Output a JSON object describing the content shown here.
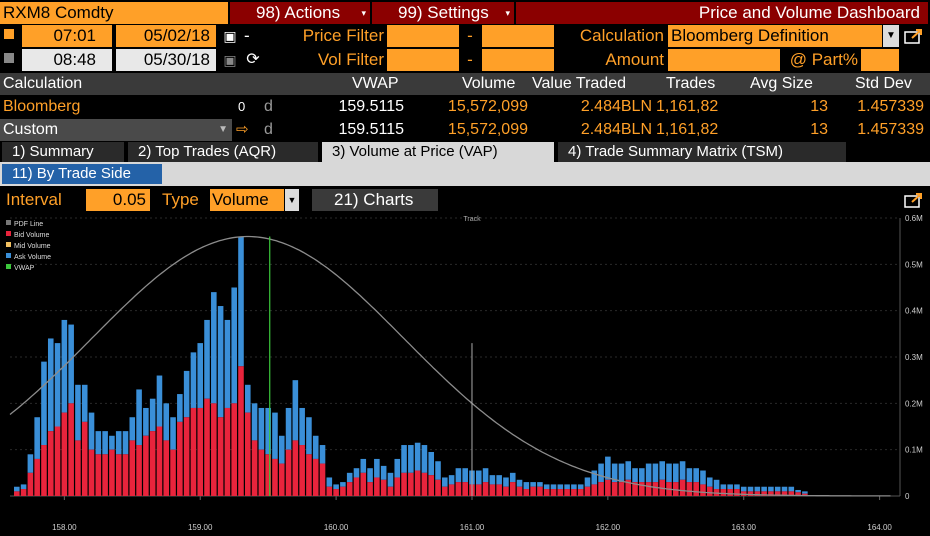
{
  "header": {
    "ticker": "RXM8 Comdty",
    "actions": "98) Actions",
    "settings": "99) Settings",
    "title": "Price and Volume Dashboard"
  },
  "filters": {
    "time_start": "07:01",
    "date_start": "05/02/18",
    "time_end": "08:48",
    "date_end": "05/30/18",
    "price_filter_label": "Price Filter",
    "vol_filter_label": "Vol Filter",
    "dash": "-",
    "calculation_label": "Calculation",
    "calculation_value": "Bloomberg Definition",
    "amount_label": "Amount",
    "part_label": "@ Part%"
  },
  "table": {
    "headers": [
      "Calculation",
      "VWAP",
      "Volume",
      "Value Traded",
      "Trades",
      "Avg Size",
      "Std Dev"
    ],
    "rows": [
      {
        "name": "Bloomberg",
        "flag": "0",
        "d": "d",
        "vwap": "159.5115",
        "volume": "15,572,099",
        "value": "2.484BLN",
        "trades": "1,161,82",
        "avg": "13",
        "std": "1.457339"
      },
      {
        "name": "Custom",
        "flag": "",
        "d": "d",
        "vwap": "159.5115",
        "volume": "15,572,099",
        "value": "2.484BLN",
        "trades": "1,161,82",
        "avg": "13",
        "std": "1.457339"
      }
    ]
  },
  "tabs": [
    "1) Summary",
    "2) Top Trades (AQR)",
    "3) Volume at Price (VAP)",
    "4) Trade Summary Matrix (TSM)"
  ],
  "subtab": "11) By Trade Side",
  "controls": {
    "interval_label": "Interval",
    "interval_value": "0.05",
    "type_label": "Type",
    "type_value": "Volume",
    "charts_button": "21) Charts"
  },
  "colors": {
    "bid": "#e8243c",
    "ask": "#3a8fd8",
    "pdf": "#8c8c8c",
    "vwap": "#3cc83c",
    "accent": "#ffa028",
    "header_red": "#8b0000"
  },
  "chart_data": {
    "type": "bar",
    "legend": [
      "PDF Line",
      "Bid Volume",
      "Mid Volume",
      "Ask Volume",
      "VWAP"
    ],
    "legend_colors": [
      "#777777",
      "#e8243c",
      "#f2c060",
      "#3a8fd8",
      "#3cc83c"
    ],
    "track_label": "Track",
    "x_ticks": [
      "158.00",
      "159.00",
      "160.00",
      "161.00",
      "162.00",
      "163.00",
      "164.00"
    ],
    "y_ticks": [
      "0",
      "0.1M",
      "0.2M",
      "0.3M",
      "0.4M",
      "0.5M",
      "0.6M"
    ],
    "xlim": [
      157.6,
      164.15
    ],
    "ylim": [
      0,
      0.6
    ],
    "vwap": 159.5115,
    "track_x": 161.0,
    "x_start": 157.65,
    "step": 0.05,
    "bid": [
      0.01,
      0.015,
      0.05,
      0.08,
      0.11,
      0.14,
      0.15,
      0.18,
      0.2,
      0.12,
      0.16,
      0.1,
      0.09,
      0.09,
      0.1,
      0.09,
      0.09,
      0.12,
      0.11,
      0.13,
      0.14,
      0.15,
      0.12,
      0.1,
      0.16,
      0.17,
      0.19,
      0.19,
      0.21,
      0.2,
      0.17,
      0.19,
      0.2,
      0.28,
      0.18,
      0.12,
      0.1,
      0.09,
      0.08,
      0.07,
      0.1,
      0.12,
      0.11,
      0.09,
      0.08,
      0.07,
      0.02,
      0.015,
      0.02,
      0.03,
      0.04,
      0.05,
      0.03,
      0.04,
      0.035,
      0.02,
      0.04,
      0.05,
      0.05,
      0.055,
      0.05,
      0.045,
      0.035,
      0.02,
      0.025,
      0.03,
      0.03,
      0.025,
      0.025,
      0.03,
      0.025,
      0.025,
      0.02,
      0.03,
      0.02,
      0.015,
      0.02,
      0.02,
      0.015,
      0.015,
      0.015,
      0.015,
      0.015,
      0.015,
      0.02,
      0.025,
      0.03,
      0.035,
      0.03,
      0.03,
      0.035,
      0.03,
      0.03,
      0.03,
      0.03,
      0.035,
      0.03,
      0.03,
      0.035,
      0.03,
      0.03,
      0.025,
      0.02,
      0.015,
      0.015,
      0.015,
      0.015,
      0.01,
      0.01,
      0.01,
      0.01,
      0.01,
      0.01,
      0.01,
      0.01,
      0.008,
      0.005
    ],
    "ask": [
      0.01,
      0.01,
      0.04,
      0.09,
      0.18,
      0.2,
      0.18,
      0.2,
      0.17,
      0.12,
      0.08,
      0.08,
      0.05,
      0.05,
      0.03,
      0.05,
      0.05,
      0.05,
      0.12,
      0.06,
      0.07,
      0.11,
      0.08,
      0.07,
      0.06,
      0.1,
      0.12,
      0.14,
      0.17,
      0.24,
      0.24,
      0.19,
      0.25,
      0.28,
      0.06,
      0.08,
      0.09,
      0.1,
      0.1,
      0.06,
      0.09,
      0.13,
      0.08,
      0.08,
      0.05,
      0.04,
      0.02,
      0.01,
      0.01,
      0.02,
      0.02,
      0.03,
      0.03,
      0.04,
      0.03,
      0.03,
      0.04,
      0.06,
      0.06,
      0.06,
      0.06,
      0.05,
      0.04,
      0.02,
      0.02,
      0.03,
      0.03,
      0.03,
      0.03,
      0.03,
      0.02,
      0.02,
      0.02,
      0.02,
      0.015,
      0.015,
      0.01,
      0.01,
      0.01,
      0.01,
      0.01,
      0.01,
      0.01,
      0.01,
      0.02,
      0.03,
      0.04,
      0.05,
      0.04,
      0.04,
      0.04,
      0.03,
      0.03,
      0.04,
      0.04,
      0.04,
      0.04,
      0.04,
      0.04,
      0.03,
      0.03,
      0.03,
      0.02,
      0.02,
      0.01,
      0.01,
      0.01,
      0.01,
      0.01,
      0.01,
      0.01,
      0.01,
      0.01,
      0.01,
      0.01,
      0.005,
      0.005
    ],
    "pdf": {
      "mean": 159.35,
      "peak": 0.56,
      "sigma": 1.15
    }
  }
}
